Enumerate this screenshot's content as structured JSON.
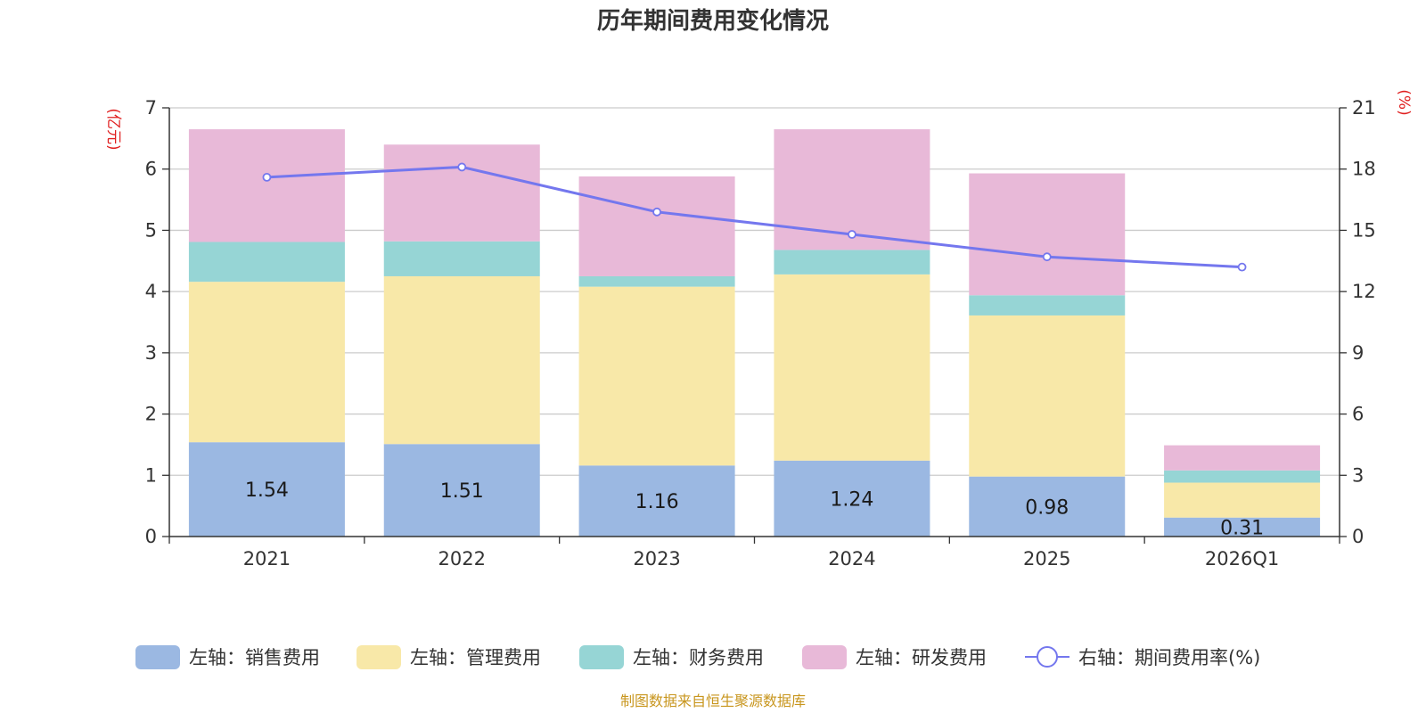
{
  "chart_data": {
    "type": "bar",
    "stacked": true,
    "title": "历年期间费用变化情况",
    "categories": [
      "2021",
      "2022",
      "2023",
      "2024",
      "2025",
      "2026Q1"
    ],
    "y_left": {
      "unit": "(亿元)",
      "min": 0,
      "max": 7,
      "ticks": [
        "0",
        "1",
        "2",
        "3",
        "4",
        "5",
        "6",
        "7"
      ]
    },
    "y_right": {
      "unit": "(%)",
      "min": 0,
      "max": 21,
      "ticks": [
        "0",
        "3",
        "6",
        "9",
        "12",
        "15",
        "18",
        "21"
      ]
    },
    "series": [
      {
        "name": "左轴：销售费用",
        "axis": "left",
        "kind": "bar",
        "color": "#9bb8e2",
        "values": [
          1.54,
          1.51,
          1.16,
          1.24,
          0.98,
          0.31
        ],
        "labels": [
          "1.54",
          "1.51",
          "1.16",
          "1.24",
          "0.98",
          "0.31"
        ]
      },
      {
        "name": "左轴：管理费用",
        "axis": "left",
        "kind": "bar",
        "color": "#f8e8a8",
        "values": [
          2.62,
          2.74,
          2.92,
          3.04,
          2.63,
          0.57
        ]
      },
      {
        "name": "左轴：财务费用",
        "axis": "left",
        "kind": "bar",
        "color": "#96d5d5",
        "values": [
          0.65,
          0.57,
          0.17,
          0.4,
          0.33,
          0.2
        ]
      },
      {
        "name": "左轴：研发费用",
        "axis": "left",
        "kind": "bar",
        "color": "#e8b9d8",
        "values": [
          1.84,
          1.58,
          1.63,
          1.97,
          1.99,
          0.41
        ]
      },
      {
        "name": "右轴：期间费用率(%)",
        "axis": "right",
        "kind": "line",
        "color": "#7477ee",
        "values": [
          17.6,
          18.1,
          15.9,
          14.8,
          13.7,
          13.2
        ]
      }
    ]
  },
  "source": {
    "text": "制图数据来自恒生聚源数据库",
    "color": "#c8961e"
  }
}
